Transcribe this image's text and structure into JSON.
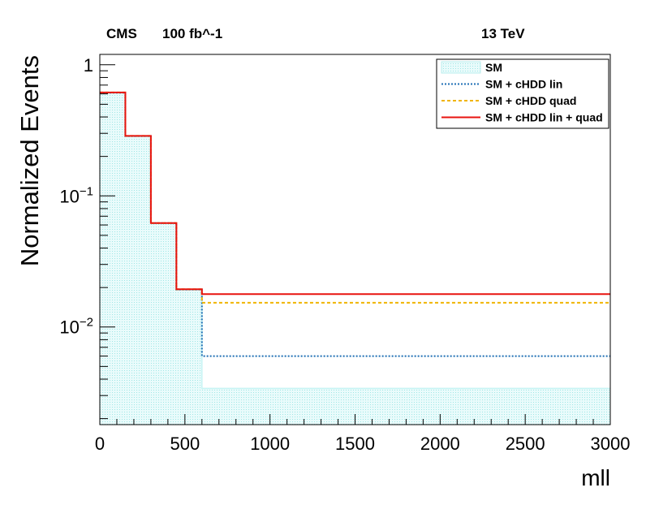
{
  "header": {
    "experiment": "CMS",
    "luminosity": "100 fb^-1",
    "energy": "13 TeV"
  },
  "chart_data": {
    "type": "step",
    "xlabel": "mll",
    "ylabel": "Normalized Events",
    "xlim": [
      0,
      3000
    ],
    "ylim": [
      0.0018,
      1.2
    ],
    "yscale": "log",
    "x_ticks": [
      0,
      500,
      1000,
      1500,
      2000,
      2500,
      3000
    ],
    "y_ticks": [
      {
        "value": 1,
        "base": "1",
        "exp": ""
      },
      {
        "value": 0.1,
        "base": "10",
        "exp": "−1"
      },
      {
        "value": 0.01,
        "base": "10",
        "exp": "−2"
      }
    ],
    "bin_edges": [
      0,
      150,
      300,
      450,
      600,
      3000
    ],
    "legend_position": "top-right",
    "series": [
      {
        "name": "SM",
        "style": "fill",
        "color": "#c8f5f5",
        "values": [
          0.61,
          0.285,
          0.062,
          0.0192,
          0.0034
        ]
      },
      {
        "name": "SM + cHDD lin",
        "style": "dotted",
        "color": "#1f6fb4",
        "values": [
          0.612,
          0.286,
          0.062,
          0.0193,
          0.006
        ]
      },
      {
        "name": "SM + cHDD quad",
        "style": "dashed",
        "color": "#f0b400",
        "values": [
          0.615,
          0.287,
          0.062,
          0.0194,
          0.0153
        ]
      },
      {
        "name": "SM + cHDD lin + quad",
        "style": "solid",
        "color": "#e8130f",
        "values": [
          0.615,
          0.287,
          0.062,
          0.0194,
          0.0178
        ]
      }
    ]
  }
}
